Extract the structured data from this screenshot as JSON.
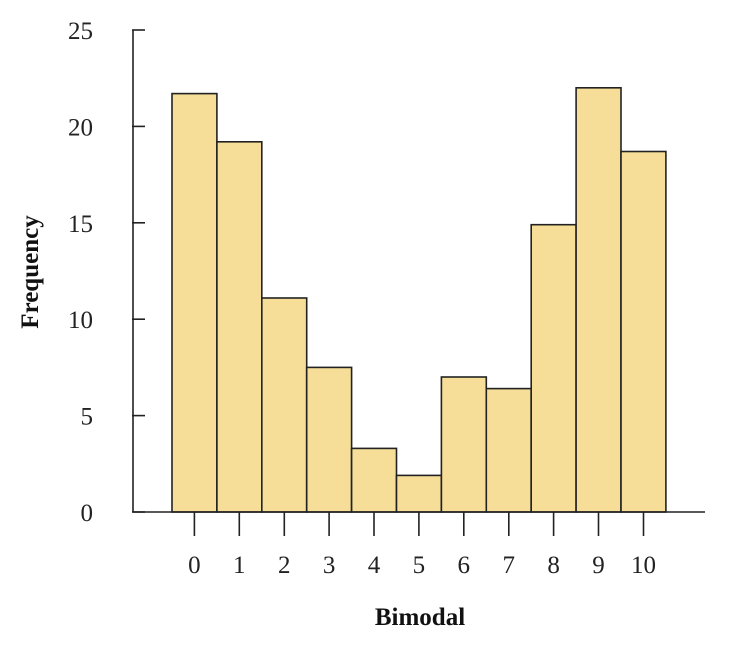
{
  "chart_data": {
    "type": "bar",
    "title": "",
    "xlabel": "Bimodal",
    "ylabel": "Frequency",
    "categories": [
      "0",
      "1",
      "2",
      "3",
      "4",
      "5",
      "6",
      "7",
      "8",
      "9",
      "10"
    ],
    "values": [
      21.7,
      19.2,
      11.1,
      7.5,
      3.3,
      1.9,
      7.0,
      6.4,
      14.9,
      22.0,
      18.7
    ],
    "ylim": [
      0,
      25
    ],
    "yticks": [
      "0",
      "5",
      "10",
      "15",
      "20",
      "25"
    ],
    "grid": false,
    "legend": "none",
    "bar_color": "#F6DE98",
    "bar_edge_color": "#222222"
  }
}
